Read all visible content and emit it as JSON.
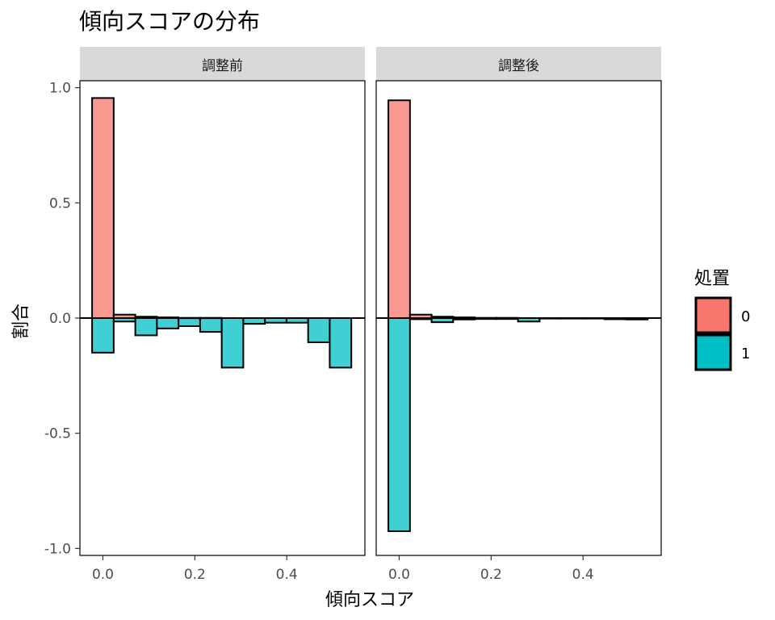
{
  "chart_data": {
    "type": "bar",
    "title": "傾向スコアの分布",
    "xlabel": "傾向スコア",
    "ylabel": "割合",
    "xlim": [
      -0.05,
      0.57
    ],
    "ylim": [
      -1.03,
      1.03
    ],
    "x_ticks": [
      0.0,
      0.2,
      0.4
    ],
    "x_tick_labels": [
      "0.0",
      "0.2",
      "0.4"
    ],
    "y_ticks": [
      -1.0,
      -0.5,
      0.0,
      0.5,
      1.0
    ],
    "y_tick_labels": [
      "-1.0",
      "-0.5",
      "0.0",
      "0.5",
      "1.0"
    ],
    "bin_width": 0.047,
    "bin_centers": [
      0.0,
      0.047,
      0.094,
      0.141,
      0.188,
      0.235,
      0.282,
      0.329,
      0.376,
      0.423,
      0.47,
      0.517
    ],
    "legend": {
      "title": "処置",
      "position": "right",
      "entries": [
        {
          "label": "0",
          "color": "#F8766D"
        },
        {
          "label": "1",
          "color": "#00BFC4"
        }
      ]
    },
    "panels": [
      {
        "strip_label": "調整前",
        "series": [
          {
            "name": "0",
            "values": [
              0.955,
              0.015,
              0.006,
              0.003,
              0.001,
              0.001,
              0.0,
              0.0,
              0.0,
              0.0,
              0.0,
              0.0
            ]
          },
          {
            "name": "1",
            "values": [
              -0.15,
              -0.015,
              -0.075,
              -0.045,
              -0.035,
              -0.06,
              -0.215,
              -0.025,
              -0.02,
              -0.02,
              -0.105,
              -0.215
            ]
          }
        ]
      },
      {
        "strip_label": "調整後",
        "series": [
          {
            "name": "0",
            "values": [
              0.945,
              0.015,
              0.006,
              0.003,
              0.001,
              0.001,
              0.0,
              0.0,
              0.0,
              0.0,
              0.0,
              0.0
            ]
          },
          {
            "name": "1",
            "values": [
              -0.925,
              -0.005,
              -0.018,
              -0.006,
              -0.004,
              -0.004,
              -0.015,
              -0.002,
              -0.001,
              -0.002,
              -0.005,
              -0.006
            ]
          }
        ]
      }
    ]
  }
}
